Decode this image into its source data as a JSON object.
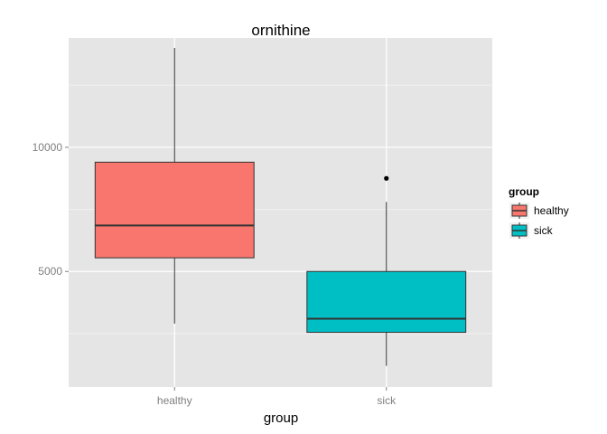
{
  "chart_data": {
    "type": "boxplot",
    "title": "ornithine",
    "xlabel": "group",
    "ylabel": "",
    "categories": [
      "healthy",
      "sick"
    ],
    "ylim": [
      350,
      14400
    ],
    "yticks": [
      5000,
      10000
    ],
    "boxes": [
      {
        "category": "healthy",
        "min": 2900,
        "q1": 5550,
        "median": 6850,
        "q3": 9400,
        "max": 14000,
        "outliers": [],
        "fill": "#F8766D"
      },
      {
        "category": "sick",
        "min": 1200,
        "q1": 2550,
        "median": 3100,
        "q3": 5000,
        "max": 7800,
        "outliers": [
          8750
        ],
        "fill": "#00BFC4"
      }
    ],
    "grid": true,
    "legend": {
      "title": "group",
      "position": "right",
      "entries": [
        {
          "label": "healthy",
          "color": "#F8766D"
        },
        {
          "label": "sick",
          "color": "#00BFC4"
        }
      ]
    },
    "colors": {
      "panel": "#E5E5E5",
      "grid_major": "#FFFFFF",
      "grid_minor": "#F2F2F2",
      "line": "#333333"
    }
  }
}
